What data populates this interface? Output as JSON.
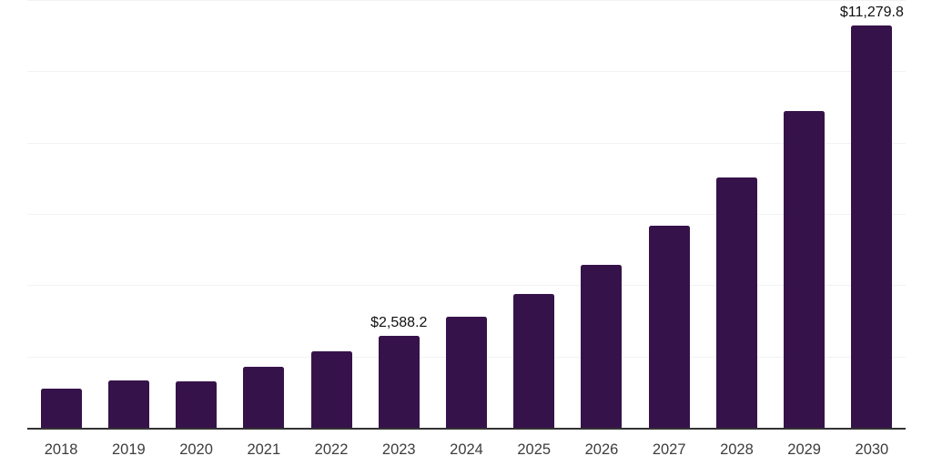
{
  "chart_data": {
    "type": "bar",
    "title": "",
    "xlabel": "",
    "ylabel": "",
    "categories": [
      "2018",
      "2019",
      "2020",
      "2021",
      "2022",
      "2023",
      "2024",
      "2025",
      "2026",
      "2027",
      "2028",
      "2029",
      "2030"
    ],
    "values": [
      1100,
      1320,
      1295,
      1715,
      2150,
      2588.2,
      3105,
      3745,
      4575,
      5660,
      7015,
      8890,
      11279.8
    ],
    "data_labels": [
      "",
      "",
      "",
      "",
      "",
      "$2,588.2",
      "",
      "",
      "",
      "",
      "",
      "",
      "$11,279.8"
    ],
    "ylim": [
      0,
      12000
    ],
    "gridline_step": 2000,
    "grid": "horizontal-only",
    "legend": "none",
    "y_axis_ticks_visible": false,
    "colors": {
      "bar": "#36124a",
      "axis_line": "#333333",
      "gridline": "#f2f2f2",
      "value_label": "#111111",
      "tick_label": "#3d3d3d",
      "background": "#ffffff"
    }
  }
}
